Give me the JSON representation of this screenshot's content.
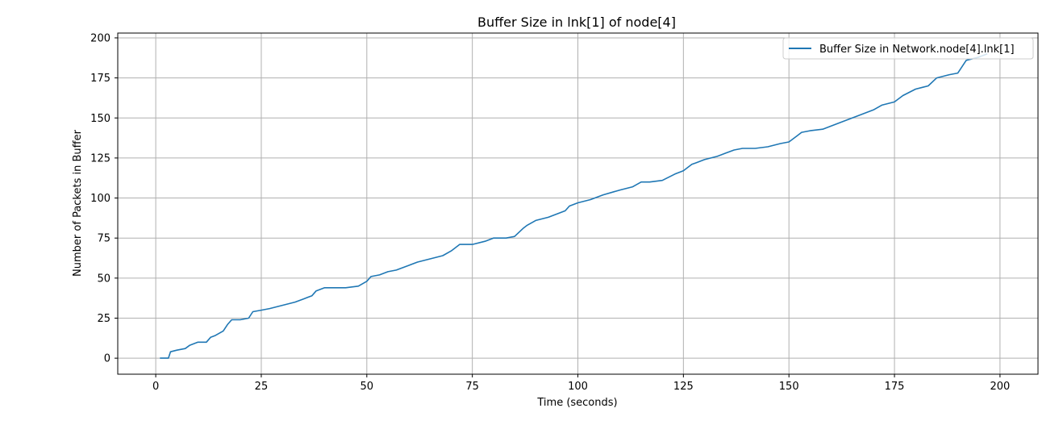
{
  "chart_data": {
    "type": "line",
    "title": "Buffer Size in lnk[1] of node[4]",
    "xlabel": "Time (seconds)",
    "ylabel": "Number of Packets in Buffer",
    "xlim": [
      -9,
      209
    ],
    "ylim": [
      -10,
      203
    ],
    "xticks": [
      0,
      25,
      50,
      75,
      100,
      125,
      150,
      175,
      200
    ],
    "yticks": [
      0,
      25,
      50,
      75,
      100,
      125,
      150,
      175,
      200
    ],
    "grid": true,
    "legend_position": "top-right",
    "colors": {
      "series": "#1f77b4",
      "grid": "#b0b0b0"
    },
    "series": [
      {
        "name": "Buffer Size in Network.node[4].lnk[1]",
        "x": [
          1,
          2,
          3,
          3.5,
          5,
          7,
          8,
          9,
          10,
          12,
          13,
          14,
          16,
          17,
          18,
          20,
          22,
          23,
          25,
          27,
          30,
          33,
          35,
          37,
          38,
          40,
          42,
          45,
          48,
          50,
          51,
          53,
          55,
          57,
          58,
          60,
          62,
          65,
          68,
          70,
          72,
          75,
          78,
          80,
          83,
          85,
          87,
          88,
          90,
          93,
          97,
          98,
          100,
          103,
          106,
          110,
          113,
          115,
          117,
          120,
          123,
          125,
          127,
          128,
          130,
          133,
          135,
          137,
          139,
          142,
          145,
          148,
          150,
          152,
          153,
          155,
          158,
          160,
          163,
          165,
          167,
          170,
          172,
          175,
          177,
          180,
          183,
          185,
          188,
          190,
          192,
          195,
          197
        ],
        "y": [
          0,
          0,
          0,
          4,
          5,
          6,
          8,
          9,
          10,
          10,
          13,
          14,
          17,
          21,
          24,
          24,
          25,
          29,
          30,
          31,
          33,
          35,
          37,
          39,
          42,
          44,
          44,
          44,
          45,
          48,
          51,
          52,
          54,
          55,
          56,
          58,
          60,
          62,
          64,
          67,
          71,
          71,
          73,
          75,
          75,
          76,
          81,
          83,
          86,
          88,
          92,
          95,
          97,
          99,
          102,
          105,
          107,
          110,
          110,
          111,
          115,
          117,
          121,
          122,
          124,
          126,
          128,
          130,
          131,
          131,
          132,
          134,
          135,
          139,
          141,
          142,
          143,
          145,
          148,
          150,
          152,
          155,
          158,
          160,
          164,
          168,
          170,
          175,
          177,
          178,
          186,
          188,
          190
        ]
      }
    ]
  }
}
